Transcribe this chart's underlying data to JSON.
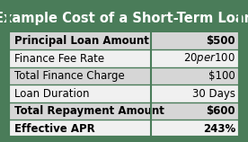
{
  "title": "Example Cost of a Short-Term Loan",
  "title_bg": "#4a7c59",
  "title_color": "#ffffff",
  "title_fontsize": 10.5,
  "rows": [
    [
      "Principal Loan Amount",
      "$500"
    ],
    [
      "Finance Fee Rate",
      "$20 per $100"
    ],
    [
      "Total Finance Charge",
      "$100"
    ],
    [
      "Loan Duration",
      "30 Days"
    ],
    [
      "Total Repayment Amount",
      "$600"
    ],
    [
      "Effective APR",
      "243%"
    ]
  ],
  "bold_rows": [
    0,
    4,
    5
  ],
  "row_bg_odd": "#d6d6d6",
  "row_bg_even": "#f0f0f0",
  "cell_text_color": "#000000",
  "border_color": "#4a7c59",
  "row_fontsize": 8.5,
  "col_split": 0.615,
  "fig_width": 2.76,
  "fig_height": 1.58,
  "dpi": 100
}
